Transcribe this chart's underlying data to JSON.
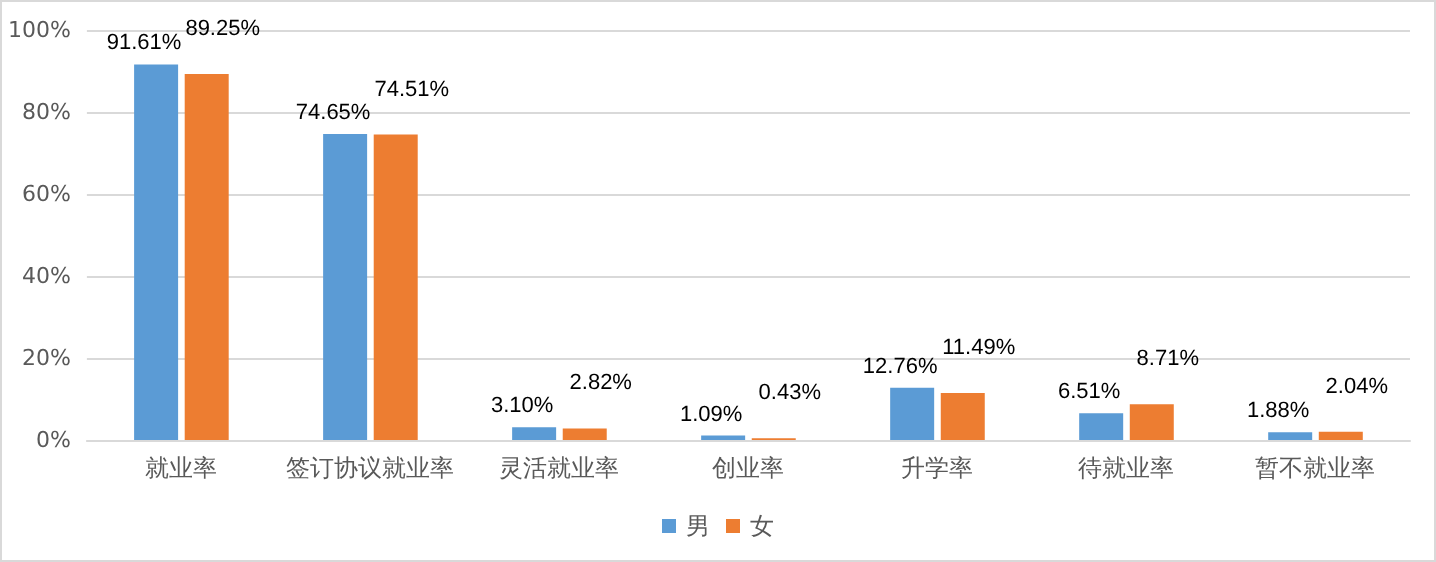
{
  "chart_data": {
    "type": "bar",
    "categories": [
      "就业率",
      "签订协议就业率",
      "灵活就业率",
      "创业率",
      "升学率",
      "待就业率",
      "暂不就业率"
    ],
    "series": [
      {
        "name": "男",
        "color": "#5b9bd5",
        "values": [
          91.61,
          74.65,
          3.1,
          1.09,
          12.76,
          6.51,
          1.88
        ],
        "value_labels": [
          "91.61%",
          "74.65%",
          "3.10%",
          "1.09%",
          "12.76%",
          "6.51%",
          "1.88%"
        ]
      },
      {
        "name": "女",
        "color": "#ed7d31",
        "values": [
          89.25,
          74.51,
          2.82,
          0.43,
          11.49,
          8.71,
          2.04
        ],
        "value_labels": [
          "89.25%",
          "74.51%",
          "2.82%",
          "0.43%",
          "11.49%",
          "8.71%",
          "2.04%"
        ]
      }
    ],
    "ylim": [
      0,
      100
    ],
    "yticks": [
      {
        "value": 0,
        "label": "0%"
      },
      {
        "value": 20,
        "label": "20%"
      },
      {
        "value": 40,
        "label": "40%"
      },
      {
        "value": 60,
        "label": "60%"
      },
      {
        "value": 80,
        "label": "80%"
      },
      {
        "value": 100,
        "label": "100%"
      }
    ],
    "grid": "y",
    "legend": "bottom"
  }
}
